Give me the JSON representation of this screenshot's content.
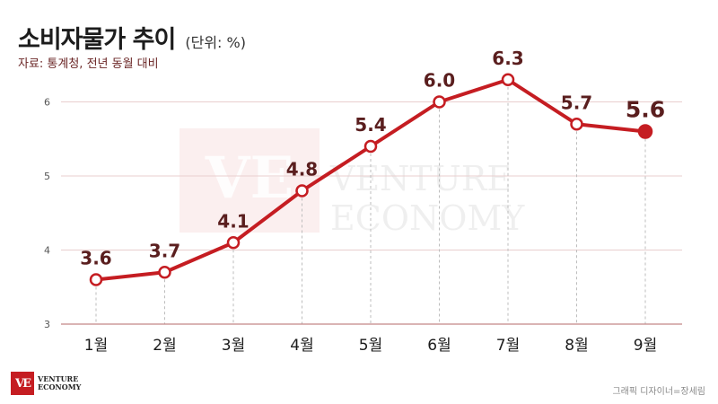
{
  "header": {
    "title": "소비자물가 추이",
    "unit": "(단위: %)",
    "source": "자료: 통계청, 전년 동월 대비"
  },
  "footer": {
    "credit": "그래픽 디자이너=장세림",
    "logo_line1": "VENTURE",
    "logo_line2": "ECONOMY",
    "logo_mark": "VE"
  },
  "watermark": {
    "mark": "VE",
    "line1": "VENTURE",
    "line2": "ECONOMY"
  },
  "colors": {
    "line": "#c51d22",
    "label": "#5a1e1e",
    "axis": "#c48888",
    "grid": "#e9cfcf",
    "tick": "#555555"
  },
  "chart_data": {
    "type": "line",
    "title": "소비자물가 추이",
    "unit": "(단위: %)",
    "categories": [
      "1월",
      "2월",
      "3월",
      "4월",
      "5월",
      "6월",
      "7월",
      "8월",
      "9월"
    ],
    "values": [
      3.6,
      3.7,
      4.1,
      4.8,
      5.4,
      6.0,
      6.3,
      5.7,
      5.6
    ],
    "value_labels": [
      "3.6",
      "3.7",
      "4.1",
      "4.8",
      "5.4",
      "6.0",
      "6.3",
      "5.7",
      "5.6"
    ],
    "ylim": [
      3,
      6.6
    ],
    "yticks": [
      3,
      4,
      5,
      6
    ],
    "grid": true,
    "highlight_last": true
  }
}
